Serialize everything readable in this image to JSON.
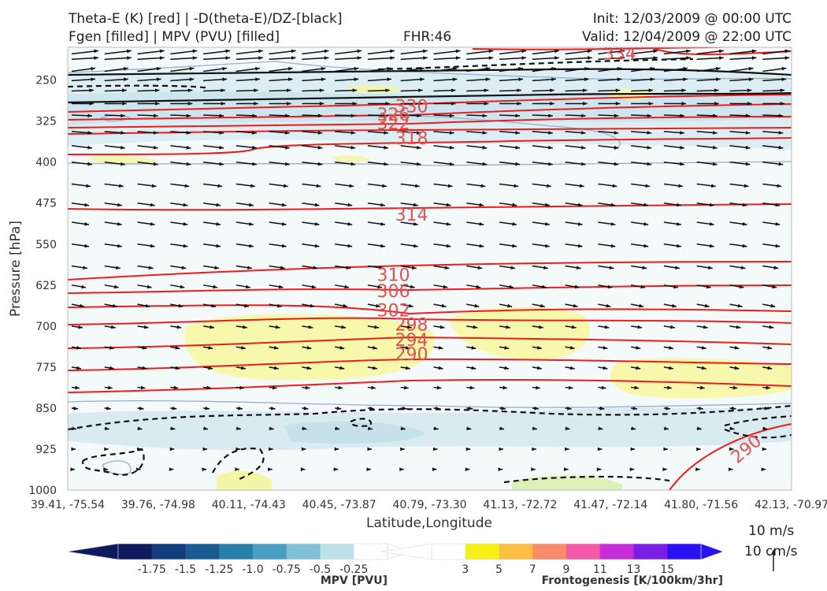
{
  "header": {
    "title_line1": "Theta-E (K) [red] | -D(theta-E)/DZ-[black]",
    "title_line2": "Fgen [filled] | MPV (PVU) [filled]",
    "fhr": "FHR:46",
    "init": "Init: 12/03/2009 @ 00:00 UTC",
    "valid": "Valid: 12/04/2009 @ 22:00 UTC"
  },
  "chart_data": {
    "type": "cross-section",
    "xlabel": "Latitude,Longitude",
    "ylabel": "Pressure [hPa]",
    "y_ticks": [
      250,
      325,
      400,
      475,
      550,
      625,
      700,
      775,
      850,
      925,
      1000
    ],
    "x_ticks": [
      "39.41, -75.54",
      "39.76, -74.98",
      "40.11, -74.43",
      "40.45, -73.87",
      "40.79, -73.30",
      "41.13, -72.72",
      "41.47, -72.14",
      "41.80, -71.56",
      "42.13, -70.97"
    ],
    "ylim": [
      1000,
      190
    ],
    "theta_e_labels": [
      {
        "value": "334",
        "x_index": 6.1,
        "p": 202
      },
      {
        "value": "330",
        "x_index": 3.8,
        "p": 299
      },
      {
        "value": "326",
        "x_index": 3.6,
        "p": 314
      },
      {
        "value": "322",
        "x_index": 3.6,
        "p": 330
      },
      {
        "value": "318",
        "x_index": 3.8,
        "p": 357
      },
      {
        "value": "314",
        "x_index": 3.8,
        "p": 497
      },
      {
        "value": "310",
        "x_index": 3.6,
        "p": 607
      },
      {
        "value": "306",
        "x_index": 3.6,
        "p": 637
      },
      {
        "value": "302",
        "x_index": 3.6,
        "p": 672
      },
      {
        "value": "298",
        "x_index": 3.8,
        "p": 698
      },
      {
        "value": "294",
        "x_index": 3.8,
        "p": 726
      },
      {
        "value": "290",
        "x_index": 3.8,
        "p": 752
      },
      {
        "value": "290",
        "x_index": 7.5,
        "p": 925
      }
    ],
    "wind_reference": [
      "10 m/s",
      "10 cm/s"
    ],
    "colorbars": [
      {
        "title": "MPV [PVU]",
        "ticks": [
          "-1.75",
          "-1.5",
          "-1.25",
          "-1.0",
          "-0.75",
          "-0.5",
          "-0.25"
        ],
        "colors": [
          "#0d1b5c",
          "#133e7e",
          "#1a5c92",
          "#2a7fa8",
          "#4a9fc2",
          "#80c1d6",
          "#bfe1e8",
          "#ffffff"
        ]
      },
      {
        "title": "Frontogenesis [K/100km/3hr]",
        "ticks": [
          "3",
          "5",
          "7",
          "9",
          "11",
          "13",
          "15"
        ],
        "colors": [
          "#ffffff",
          "#f5f018",
          "#fbbf44",
          "#f98a6a",
          "#f55aa8",
          "#c62fd8",
          "#7a1ee6",
          "#2a10f5"
        ]
      }
    ]
  }
}
